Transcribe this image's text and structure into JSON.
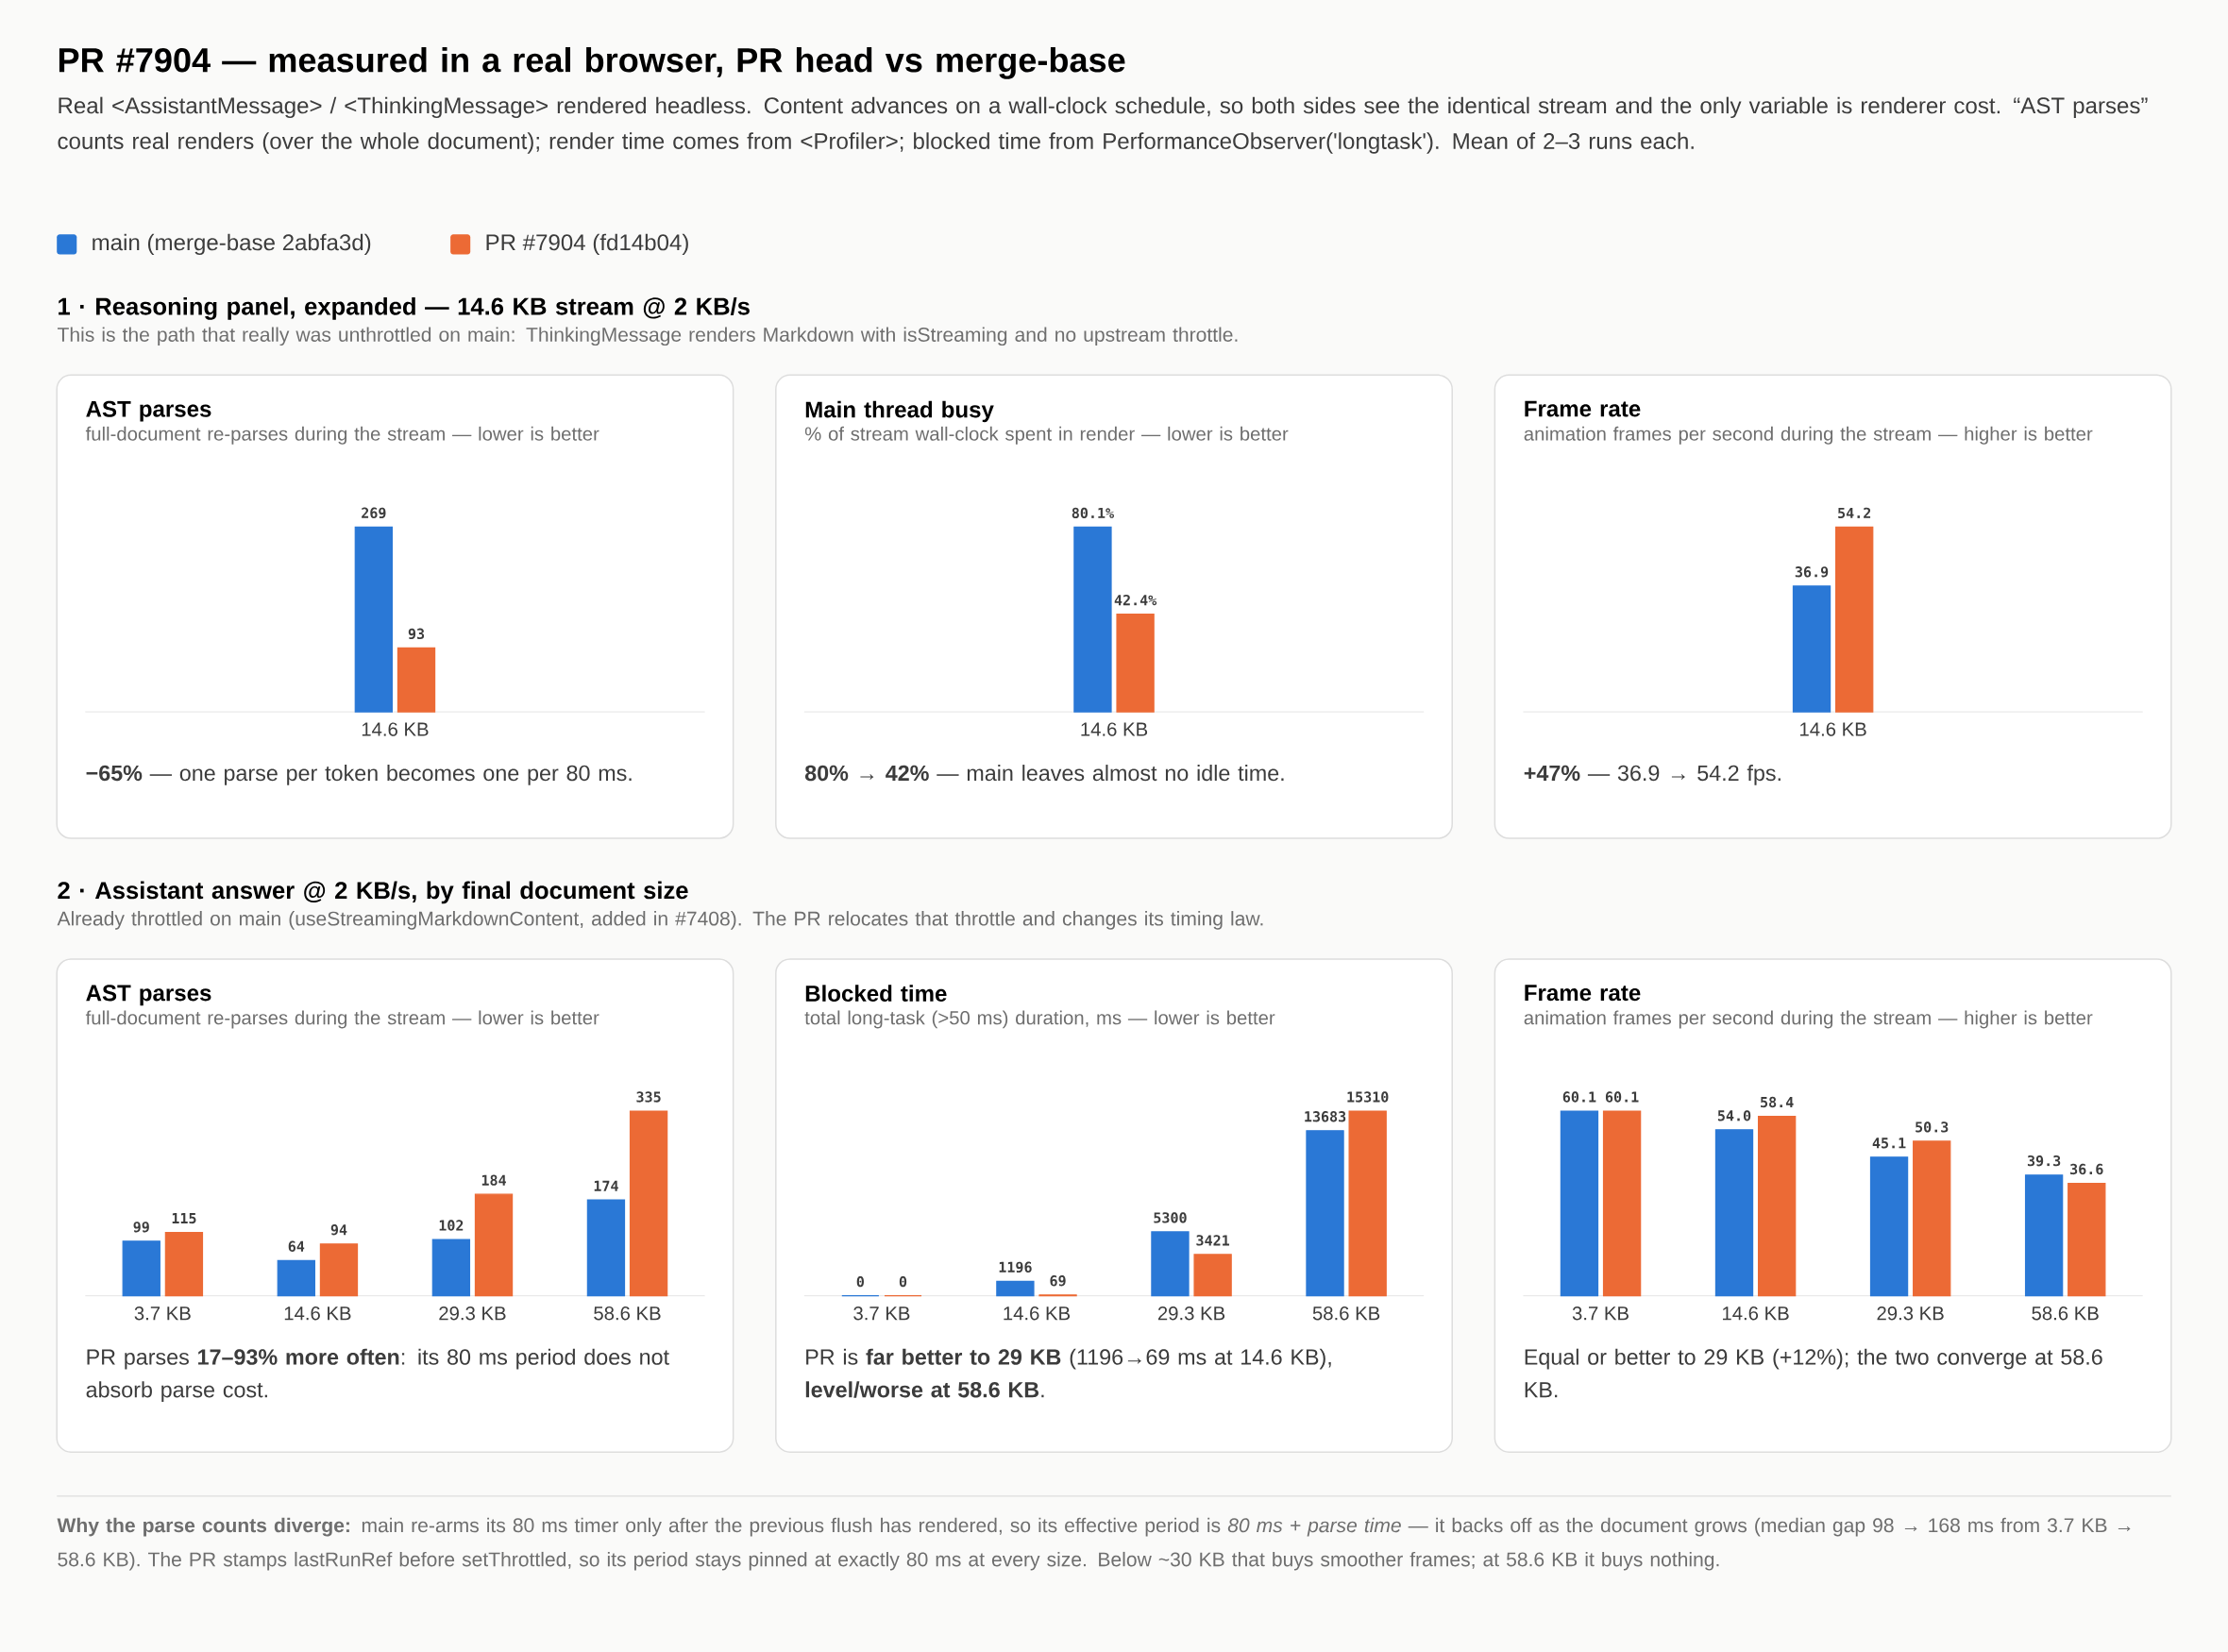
{
  "chart_data": [
    {
      "type": "bar",
      "title": "AST parses",
      "subtitle": "full-document re-parses during the stream — lower is better",
      "categories": [
        "14.6 KB"
      ],
      "data_labels": true,
      "legend": "top",
      "series": [
        {
          "name": "main (merge-base 2abfa3d)",
          "color": "#2a78d6",
          "values": [
            269
          ]
        },
        {
          "name": "PR #7904 (fd14b04)",
          "color": "#ec6a35",
          "values": [
            93
          ]
        }
      ],
      "annotations": [
        "PR #7904 — measured in a real browser, PR head vs merge-base",
        "Real <AssistantMessage> / <ThinkingMessage> rendered headless. Content advances on a wall-clock schedule, so both sides see the identical stream and the only variable is renderer cost. “AST parses” counts real renders (over the whole document); render time comes from <Profiler>; blocked time from PerformanceObserver('longtask'). Mean of 2–3 runs each.",
        "1 · Reasoning panel, expanded — 14.6 KB stream @ 2 KB/s",
        "This is the path that really was unthrottled on main: ThinkingMessage renders Markdown with isStreaming and no upstream throttle.",
        "**−65%** — one parse per token becomes one per 80 ms."
      ]
    },
    {
      "type": "bar",
      "title": "Main thread busy",
      "subtitle": "% of stream wall-clock spent in render — lower is better",
      "categories": [
        "14.6 KB"
      ],
      "series": [
        {
          "color": "#2a78d6",
          "values": [
            80.1
          ],
          "value_labels": [
            "80.1%"
          ]
        },
        {
          "color": "#ec6a35",
          "values": [
            42.4
          ],
          "value_labels": [
            "42.4%"
          ]
        }
      ],
      "annotations": [
        "**80% → 42%** — main leaves almost no idle time."
      ]
    },
    {
      "type": "bar",
      "title": "Frame rate",
      "subtitle": "animation frames per second during the stream — higher is better",
      "categories": [
        "14.6 KB"
      ],
      "data_labels": true,
      "series": [
        {
          "color": "#2a78d6",
          "values": [
            36.9
          ]
        },
        {
          "color": "#ec6a35",
          "values": [
            54.2
          ]
        }
      ],
      "annotations": [
        "**+47%** — 36.9 → 54.2 fps."
      ]
    },
    {
      "type": "bar",
      "title": "AST parses",
      "subtitle": "full-document re-parses during the stream — lower is better",
      "categories": [
        "3.7 KB",
        "14.6 KB",
        "29.3 KB",
        "58.6 KB"
      ],
      "data_labels": true,
      "series": [
        {
          "color": "#2a78d6",
          "values": [
            99,
            64,
            102,
            174
          ]
        },
        {
          "color": "#ec6a35",
          "values": [
            115,
            94,
            184,
            335
          ]
        }
      ],
      "annotations": [
        "2 · Assistant answer @ 2 KB/s, by final document size",
        "Already throttled on main (useStreamingMarkdownContent, added in #7408). The PR relocates that throttle and changes its timing law.",
        "PR parses **17–93% more often**: its 80 ms period does not absorb parse cost."
      ]
    },
    {
      "type": "bar",
      "title": "Blocked time",
      "subtitle": "total long-task (>50 ms) duration, ms — lower is better",
      "categories": [
        "3.7 KB",
        "14.6 KB",
        "29.3 KB",
        "58.6 KB"
      ],
      "data_labels": true,
      "series": [
        {
          "color": "#2a78d6",
          "values": [
            0,
            1196,
            5300,
            13683
          ]
        },
        {
          "color": "#ec6a35",
          "values": [
            0,
            69,
            3421,
            15310
          ]
        }
      ],
      "annotations": [
        "PR is **far better to 29 KB** (1196→69 ms at 14.6 KB), **level/worse at 58.6 KB**."
      ]
    },
    {
      "type": "bar",
      "title": "Frame rate",
      "subtitle": "animation frames per second during the stream — higher is better",
      "categories": [
        "3.7 KB",
        "14.6 KB",
        "29.3 KB",
        "58.6 KB"
      ],
      "series": [
        {
          "color": "#2a78d6",
          "values": [
            60.1,
            54.0,
            45.1,
            39.3
          ],
          "value_labels": [
            "60.1",
            "54.0",
            "45.1",
            "39.3"
          ]
        },
        {
          "color": "#ec6a35",
          "values": [
            60.1,
            58.4,
            50.3,
            36.6
          ],
          "value_labels": [
            "60.1",
            "58.4",
            "50.3",
            "36.6"
          ]
        }
      ],
      "annotations": [
        "Equal or better to 29 KB (+12%); the two converge at 58.6 KB.",
        "**Why the parse counts diverge:** main re-arms its 80 ms timer only after the previous flush has rendered, so its effective period is *80 ms + parse time* — it backs off as the document grows (median gap 98 → 168 ms from 3.7 KB → 58.6 KB). The PR stamps lastRunRef before setThrottled, so its period stays pinned at exactly 80 ms at every size. Below ~30 KB that buys smoother frames; at 58.6 KB it buys nothing."
      ]
    }
  ]
}
